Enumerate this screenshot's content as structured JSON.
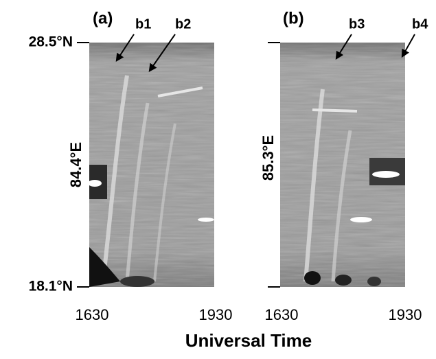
{
  "panels": [
    {
      "label": "(a)",
      "y_axis_label": "84.4°E",
      "y_tick_labels": [
        "28.5°N",
        "18.1°N"
      ],
      "x_tick_labels": [
        "1630",
        "1930"
      ],
      "annotations": [
        "b1",
        "b2"
      ]
    },
    {
      "label": "(b)",
      "y_axis_label": "85.3°E",
      "x_tick_labels": [
        "1630",
        "1930"
      ],
      "annotations": [
        "b3",
        "b4"
      ]
    }
  ],
  "x_axis_label": "Universal Time"
}
